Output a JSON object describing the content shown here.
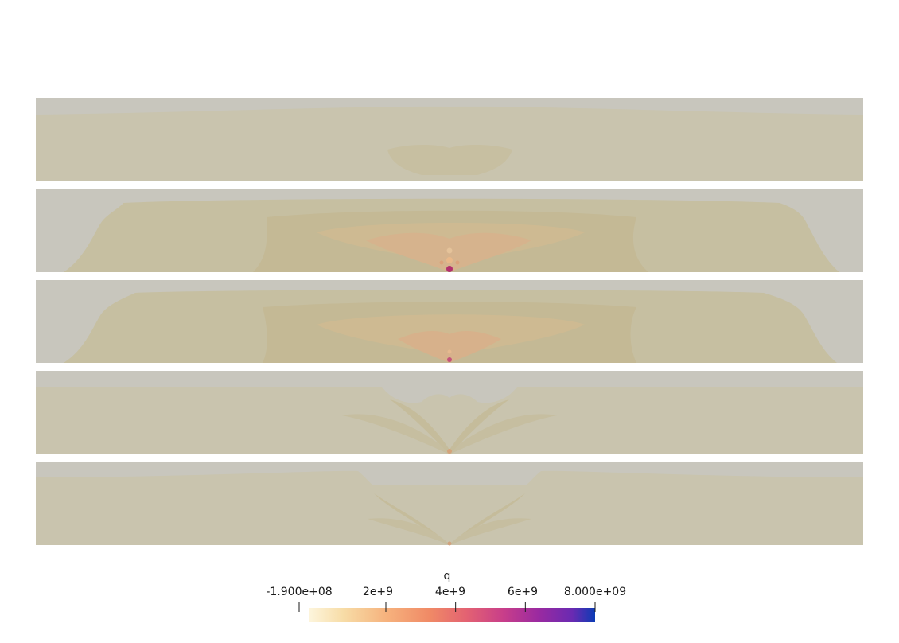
{
  "colorbar": {
    "title": "q",
    "range_min_label": "-1.900e+08",
    "range_max_label": "8.000e+09",
    "ticks": [
      {
        "label": "2e+9",
        "value": 2000000000
      },
      {
        "label": "4e+9",
        "value": 4000000000
      },
      {
        "label": "6e+9",
        "value": 6000000000
      }
    ],
    "range": [
      -190000000,
      8000000000
    ],
    "colormap": [
      "#fdf5dc",
      "#f7dca6",
      "#f6b27d",
      "#f08a66",
      "#e36272",
      "#c83e8a",
      "#9b2aa0",
      "#6a2ab2",
      "#0b3bb5"
    ]
  },
  "panels": [
    {
      "name": "panel-1",
      "top_band": "#c8c6bd",
      "body": "#c8c3ac"
    },
    {
      "name": "panel-2",
      "top_band": "#c8c6bd",
      "body": "#c6c0a2"
    },
    {
      "name": "panel-3",
      "top_band": "#c8c6bd",
      "body": "#c6c0a2"
    },
    {
      "name": "panel-4",
      "top_band": "#c8c6bd",
      "body": "#c8c3ac"
    },
    {
      "name": "panel-5",
      "top_band": "#c8c6bd",
      "body": "#c8c3ac"
    }
  ]
}
